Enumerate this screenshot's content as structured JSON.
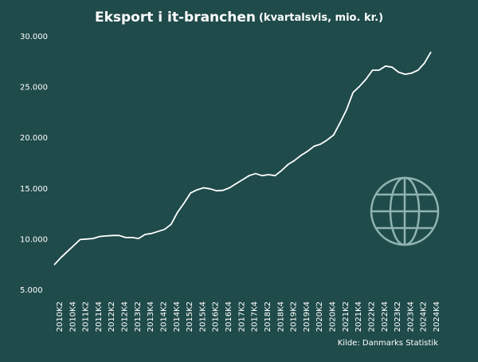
{
  "chart_data": {
    "type": "line",
    "title": "Eksport i it-branchen",
    "subtitle": "(kvartalsvis, mio. kr.)",
    "source": "Kilde: Danmarks Statistik",
    "categories": [
      "2010K2",
      null,
      "2010K4",
      null,
      "2011K2",
      null,
      "2011K4",
      null,
      "2012K2",
      null,
      "2012K4",
      null,
      "2013K2",
      null,
      "2013K4",
      null,
      "2014K2",
      null,
      "2014K4",
      null,
      "2015K2",
      null,
      "2015K4",
      null,
      "2016K2",
      null,
      "2016K4",
      null,
      "2017K2",
      null,
      "2017K4",
      null,
      "2018K2",
      null,
      "2018K4",
      null,
      "2019K2",
      null,
      "2019K4",
      null,
      "2020K2",
      null,
      "2020K4",
      null,
      "2021K2",
      null,
      "2021K4",
      null,
      "2022K2",
      null,
      "2022K4",
      null,
      "2023K2",
      null,
      "2023K4",
      null,
      "2024K2",
      null,
      "2024K4"
    ],
    "series": [
      {
        "color": "#ffffff",
        "values": [
          7500,
          8200,
          8800,
          9400,
          10000,
          10050,
          10100,
          10300,
          10350,
          10400,
          10400,
          10200,
          10200,
          10100,
          10500,
          10600,
          10800,
          11000,
          11500,
          12700,
          13600,
          14600,
          14900,
          15100,
          15000,
          14800,
          14850,
          15100,
          15500,
          15900,
          16300,
          16500,
          16300,
          16400,
          16300,
          16800,
          17400,
          17800,
          18300,
          18700,
          19200,
          19400,
          19800,
          20300,
          21500,
          22800,
          24500,
          25100,
          25800,
          26700,
          26700,
          27100,
          27000,
          26500,
          26300,
          26400,
          26700,
          27400,
          28500
        ]
      }
    ],
    "ylim": [
      5000,
      30000
    ],
    "yticks": [
      {
        "value": 5000,
        "label": "5.000"
      },
      {
        "value": 10000,
        "label": "10.000"
      },
      {
        "value": 15000,
        "label": "15.000"
      },
      {
        "value": 20000,
        "label": "20.000"
      },
      {
        "value": 25000,
        "label": "25.000"
      },
      {
        "value": 30000,
        "label": "30.000"
      }
    ],
    "grid": false
  }
}
